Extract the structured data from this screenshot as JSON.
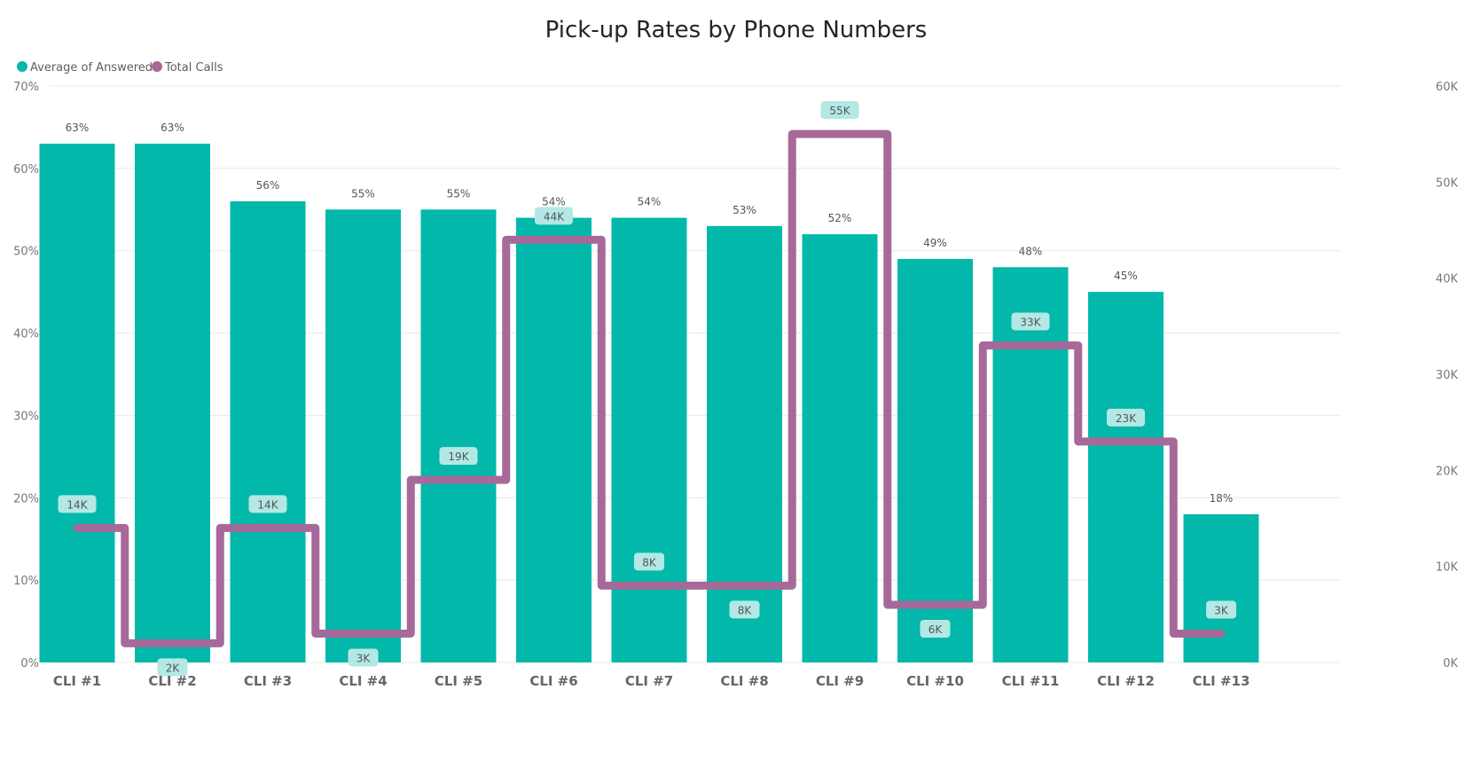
{
  "chart_data": {
    "type": "bar",
    "title": "Pick-up Rates by Phone Numbers",
    "categories": [
      "CLI #1",
      "CLI #2",
      "CLI #3",
      "CLI #4",
      "CLI #5",
      "CLI #6",
      "CLI #7",
      "CLI #8",
      "CLI #9",
      "CLI #10",
      "CLI #11",
      "CLI #12",
      "CLI #13"
    ],
    "series": [
      {
        "name": "Average of Answered",
        "type": "bar",
        "axis": "left",
        "values": [
          63,
          63,
          56,
          55,
          55,
          54,
          54,
          53,
          52,
          49,
          48,
          45,
          18
        ],
        "labels": [
          "63%",
          "63%",
          "56%",
          "55%",
          "55%",
          "54%",
          "54%",
          "53%",
          "52%",
          "49%",
          "48%",
          "45%",
          "18%"
        ],
        "color": "#01b8aa"
      },
      {
        "name": "Total Calls",
        "type": "step-line",
        "axis": "right",
        "values": [
          14000,
          2000,
          14000,
          3000,
          19000,
          44000,
          8000,
          8000,
          55000,
          6000,
          33000,
          23000,
          3000
        ],
        "labels": [
          "14K",
          "2K",
          "14K",
          "3K",
          "19K",
          "44K",
          "8K",
          "8K",
          "55K",
          "6K",
          "33K",
          "23K",
          "3K"
        ],
        "color": "#a66999"
      }
    ],
    "y_left": {
      "ylim": [
        0,
        70
      ],
      "ticks": [
        "0%",
        "10%",
        "20%",
        "30%",
        "40%",
        "50%",
        "60%",
        "70%"
      ]
    },
    "y_right": {
      "ylim": [
        0,
        60000
      ],
      "ticks": [
        "0K",
        "10K",
        "20K",
        "30K",
        "40K",
        "50K",
        "60K"
      ]
    },
    "legend": {
      "position": "top-left",
      "items": [
        "Average of Answered",
        "Total Calls"
      ]
    },
    "grid": true,
    "line_label_bg": "#b3e8e4"
  }
}
